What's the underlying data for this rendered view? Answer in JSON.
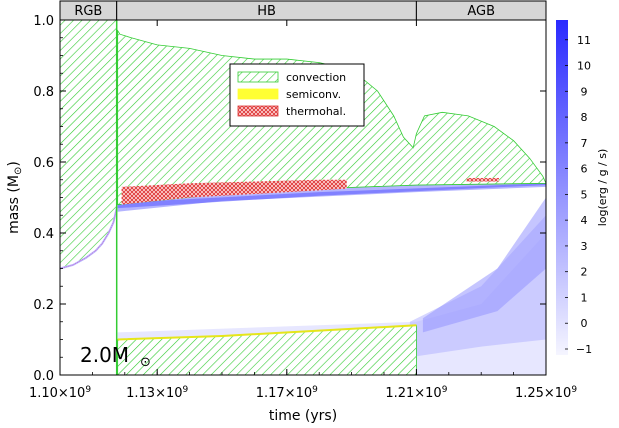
{
  "chart_data": {
    "type": "area",
    "title": "",
    "xlabel": "time (yrs)",
    "ylabel": "mass (M",
    "ylabel_symbol": "⊙",
    "ylabel_close": ")",
    "colorbar_label": "log(erg / g / s)",
    "mass_annotation": "2.0M",
    "mass_annotation_symbol": "⊙",
    "xlim": [
      1100000000.0,
      1250000000.0
    ],
    "ylim": [
      0.0,
      1.0
    ],
    "x_ticks": [
      {
        "value": 1100000000.0,
        "label": "1.10×10",
        "exp": "9"
      },
      {
        "value": 1130000000.0,
        "label": "1.13×10",
        "exp": "9"
      },
      {
        "value": 1170000000.0,
        "label": "1.17×10",
        "exp": "9"
      },
      {
        "value": 1210000000.0,
        "label": "1.21×10",
        "exp": "9"
      },
      {
        "value": 1250000000.0,
        "label": "1.25×10",
        "exp": "9"
      }
    ],
    "y_ticks": [
      {
        "value": 0.0,
        "label": "0.0"
      },
      {
        "value": 0.2,
        "label": "0.2"
      },
      {
        "value": 0.4,
        "label": "0.4"
      },
      {
        "value": 0.6,
        "label": "0.6"
      },
      {
        "value": 0.8,
        "label": "0.8"
      },
      {
        "value": 1.0,
        "label": "1.0"
      }
    ],
    "phases": [
      {
        "label": "RGB",
        "x_start": 1100000000.0,
        "x_end": 1117500000.0
      },
      {
        "label": "HB",
        "x_start": 1117500000.0,
        "x_end": 1210000000.0
      },
      {
        "label": "AGB",
        "x_start": 1210000000.0,
        "x_end": 1250000000.0
      }
    ],
    "legend": {
      "placement": "top-center",
      "entries": [
        {
          "label": "convection",
          "color": "#33cc33",
          "pattern": "hatch"
        },
        {
          "label": "semiconv.",
          "color": "#ffff33",
          "pattern": "solid"
        },
        {
          "label": "thermohal.",
          "color": "#dd3333",
          "pattern": "crosshatch"
        }
      ]
    },
    "colorbar": {
      "min": -1,
      "max": 12,
      "ticks": [
        -1,
        0,
        1,
        2,
        3,
        4,
        5,
        6,
        7,
        8,
        9,
        10,
        11
      ],
      "color_low": "#f2f2ff",
      "color_high": "#1a1aff"
    },
    "regions": {
      "rgb_envelope_convection": {
        "kind": "convection",
        "top": 1.0,
        "bottom": [
          [
            1100000000.0,
            0.3
          ],
          [
            1104000000.0,
            0.31
          ],
          [
            1108000000.0,
            0.33
          ],
          [
            1111000000.0,
            0.35
          ],
          [
            1113000000.0,
            0.37
          ],
          [
            1115000000.0,
            0.4
          ],
          [
            1116500000.0,
            0.43
          ],
          [
            1117500000.0,
            0.47
          ]
        ]
      },
      "hb_envelope_convection": {
        "kind": "convection",
        "top": [
          [
            1117800000.0,
            0.97
          ],
          [
            1118500000.0,
            0.96
          ],
          [
            1122000000.0,
            0.95
          ],
          [
            1130000000.0,
            0.93
          ],
          [
            1140000000.0,
            0.92
          ],
          [
            1150000000.0,
            0.9
          ],
          [
            1160000000.0,
            0.89
          ],
          [
            1170000000.0,
            0.89
          ],
          [
            1180000000.0,
            0.88
          ],
          [
            1190000000.0,
            0.86
          ],
          [
            1198000000.0,
            0.8
          ],
          [
            1203000000.0,
            0.73
          ],
          [
            1206000000.0,
            0.67
          ],
          [
            1209000000.0,
            0.64
          ],
          [
            1210000000.0,
            0.68
          ],
          [
            1212500000.0,
            0.73
          ],
          [
            1218000000.0,
            0.74
          ],
          [
            1226000000.0,
            0.73
          ],
          [
            1234000000.0,
            0.7
          ],
          [
            1240000000.0,
            0.66
          ],
          [
            1245000000.0,
            0.61
          ],
          [
            1249000000.0,
            0.56
          ],
          [
            1250000000.0,
            0.54
          ]
        ],
        "bottom": [
          [
            1117800000.0,
            0.48
          ],
          [
            1150000000.0,
            0.51
          ],
          [
            1180000000.0,
            0.525
          ],
          [
            1210000000.0,
            0.535
          ],
          [
            1250000000.0,
            0.54
          ]
        ]
      },
      "hb_core_convection": {
        "kind": "convection",
        "x_range": [
          1117800000.0,
          1210000000.0
        ],
        "bottom": 0.0,
        "top": [
          [
            1117800000.0,
            0.1
          ],
          [
            1150000000.0,
            0.11
          ],
          [
            1180000000.0,
            0.125
          ],
          [
            1210000000.0,
            0.14
          ]
        ]
      },
      "thermohaline": {
        "kind": "thermohaline",
        "band": [
          [
            1119000000.0,
            0.48,
            0.53
          ],
          [
            1140000000.0,
            0.5,
            0.54
          ],
          [
            1160000000.0,
            0.51,
            0.545
          ],
          [
            1180000000.0,
            0.52,
            0.55
          ],
          [
            1188500000.0,
            0.525,
            0.55
          ]
        ]
      },
      "agb_thermohaline": {
        "kind": "thermohaline",
        "x_range": [
          1225500000.0,
          1235500000.0
        ],
        "y_range": [
          0.545,
          0.555
        ]
      }
    },
    "energy_bands": [
      {
        "level": 1,
        "x_range": [
          1117800000.0,
          1250000000.0
        ],
        "y": [
          [
            1117800000.0,
            0.0,
            0.12
          ],
          [
            1210000000.0,
            0.0,
            0.15
          ],
          [
            1230000000.0,
            0.0,
            0.2
          ],
          [
            1250000000.0,
            0.0,
            0.4
          ]
        ]
      },
      {
        "level": 3,
        "x_range": [
          1208000000.0,
          1250000000.0
        ],
        "y": [
          [
            1208000000.0,
            0.05,
            0.15
          ],
          [
            1230000000.0,
            0.08,
            0.25
          ],
          [
            1250000000.0,
            0.1,
            0.45
          ]
        ]
      },
      {
        "level": 5,
        "x_range": [
          1212000000.0,
          1250000000.0
        ],
        "y": [
          [
            1212000000.0,
            0.12,
            0.16
          ],
          [
            1235000000.0,
            0.18,
            0.3
          ],
          [
            1250000000.0,
            0.3,
            0.5
          ]
        ]
      },
      {
        "level": 7,
        "x_range": [
          1117800000.0,
          1250000000.0
        ],
        "y": [
          [
            1117800000.0,
            0.46,
            0.5
          ],
          [
            1150000000.0,
            0.49,
            0.52
          ],
          [
            1210000000.0,
            0.515,
            0.535
          ],
          [
            1250000000.0,
            0.53,
            0.545
          ]
        ]
      },
      {
        "level": 9,
        "x_range": [
          1117800000.0,
          1250000000.0
        ],
        "y": [
          [
            1117800000.0,
            0.47,
            0.485
          ],
          [
            1180000000.0,
            0.505,
            0.515
          ],
          [
            1250000000.0,
            0.535,
            0.54
          ]
        ]
      }
    ]
  }
}
